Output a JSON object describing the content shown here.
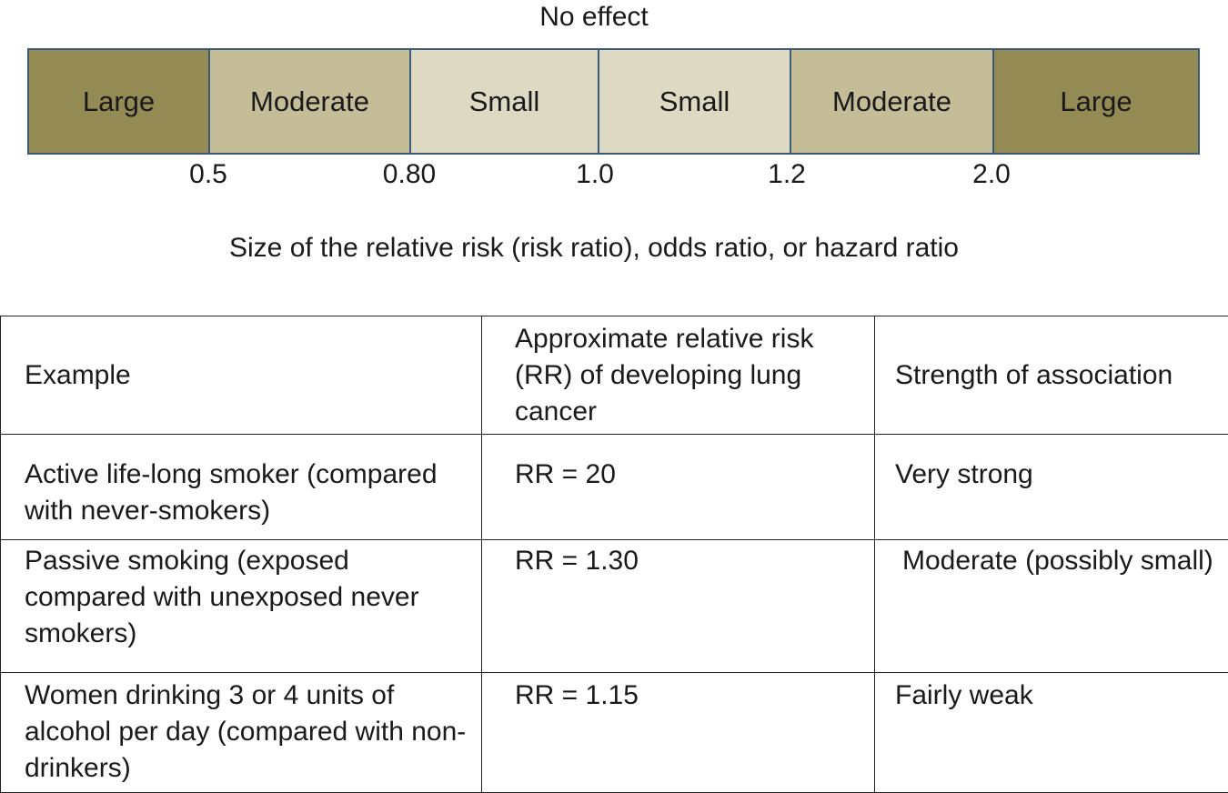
{
  "scale": {
    "top_label": "No effect",
    "segments": [
      {
        "label": "Large",
        "level": "large",
        "from": null,
        "to": 0.5
      },
      {
        "label": "Moderate",
        "level": "moderate",
        "from": 0.5,
        "to": 0.8
      },
      {
        "label": "Small",
        "level": "small",
        "from": 0.8,
        "to": 1.0
      },
      {
        "label": "Small",
        "level": "small",
        "from": 1.0,
        "to": 1.2
      },
      {
        "label": "Moderate",
        "level": "moderate",
        "from": 1.2,
        "to": 2.0
      },
      {
        "label": "Large",
        "level": "large",
        "from": 2.0,
        "to": null
      }
    ],
    "ticks": [
      "0.5",
      "0.80",
      "1.0",
      "1.2",
      "2.0"
    ],
    "caption": "Size of the relative risk (risk ratio), odds ratio, or hazard ratio",
    "colors": {
      "large": "#948a54",
      "moderate": "#c4bd97",
      "small": "#ddd9c3",
      "border": "#3b5a78"
    }
  },
  "table": {
    "headers": {
      "example": "Example",
      "rr": "Approximate relative risk (RR) of developing lung cancer",
      "strength": "Strength of association"
    },
    "rows": [
      {
        "example": "Active life-long smoker (compared with never-smokers)",
        "rr": "RR = 20",
        "strength": "Very strong"
      },
      {
        "example": "Passive smoking (exposed compared with unexposed never smokers)",
        "rr": "RR = 1.30",
        "strength": "Moderate (possibly small)"
      },
      {
        "example": "Women drinking 3 or 4 units of alcohol per day (compared with non-drinkers)",
        "rr": "RR = 1.15",
        "strength": "Fairly weak"
      }
    ]
  }
}
